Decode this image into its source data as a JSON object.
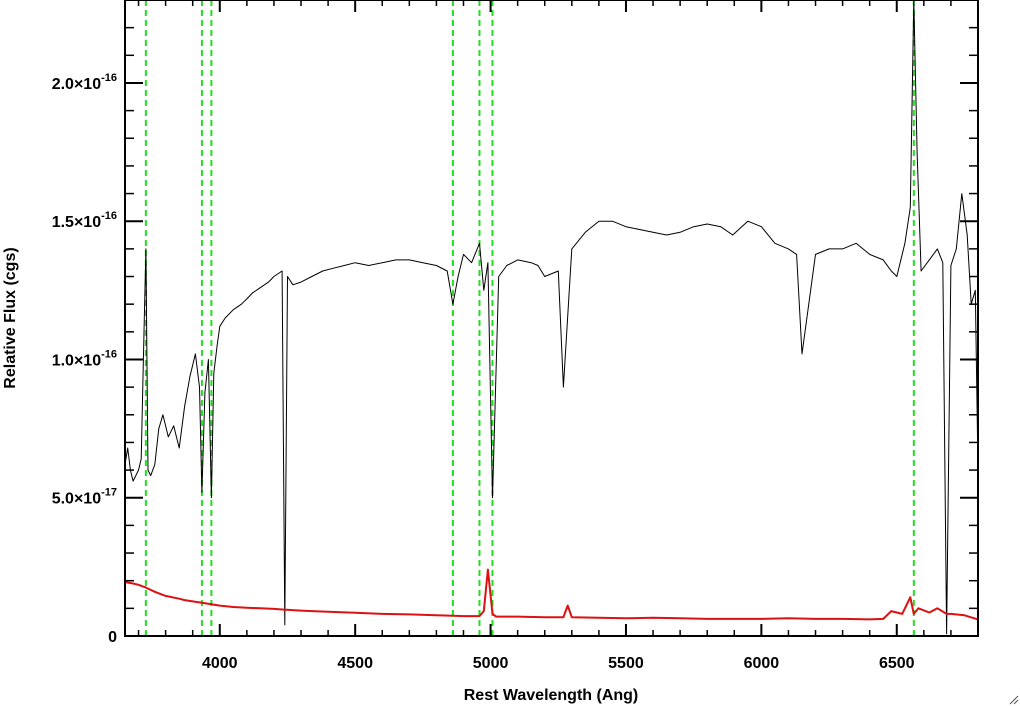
{
  "chart_data": {
    "type": "line",
    "title": "",
    "xlabel": "Rest Wavelength (Ang)",
    "ylabel": "Relative Flux (cgs)",
    "xlim": [
      3650,
      6800
    ],
    "ylim": [
      0,
      2.3e-16
    ],
    "x_ticks": [
      {
        "value": 4000,
        "label": "4000"
      },
      {
        "value": 4500,
        "label": "4500"
      },
      {
        "value": 5000,
        "label": "5000"
      },
      {
        "value": 5500,
        "label": "5500"
      },
      {
        "value": 6000,
        "label": "6000"
      },
      {
        "value": 6500,
        "label": "6500"
      }
    ],
    "y_ticks": [
      {
        "value": 0,
        "mantissa": "0",
        "exponent": ""
      },
      {
        "value": 5e-17,
        "mantissa": "5.0×10",
        "exponent": "-17"
      },
      {
        "value": 1e-16,
        "mantissa": "1.0×10",
        "exponent": "-16"
      },
      {
        "value": 1.5e-16,
        "mantissa": "1.5×10",
        "exponent": "-16"
      },
      {
        "value": 2e-16,
        "mantissa": "2.0×10",
        "exponent": "-16"
      }
    ],
    "grid": false,
    "reference_lines": [
      3727,
      3934,
      3969,
      4861,
      4959,
      5007,
      6563
    ],
    "reference_line_color": "#22dd22",
    "series": [
      {
        "color": "#000000",
        "x": [
          3650,
          3660,
          3670,
          3680,
          3690,
          3700,
          3710,
          3720,
          3727,
          3735,
          3745,
          3760,
          3775,
          3790,
          3810,
          3830,
          3850,
          3870,
          3890,
          3910,
          3925,
          3934,
          3945,
          3958,
          3969,
          3978,
          3990,
          4000,
          4020,
          4050,
          4080,
          4101,
          4120,
          4150,
          4180,
          4200,
          4230,
          4240,
          4250,
          4270,
          4300,
          4340,
          4380,
          4420,
          4460,
          4500,
          4550,
          4600,
          4650,
          4700,
          4750,
          4800,
          4840,
          4861,
          4880,
          4900,
          4930,
          4959,
          4975,
          4990,
          5007,
          5030,
          5060,
          5100,
          5150,
          5175,
          5200,
          5250,
          5269,
          5300,
          5350,
          5400,
          5450,
          5500,
          5550,
          5600,
          5650,
          5700,
          5750,
          5800,
          5850,
          5894,
          5950,
          6000,
          6050,
          6100,
          6130,
          6150,
          6200,
          6250,
          6300,
          6350,
          6400,
          6450,
          6480,
          6500,
          6530,
          6550,
          6563,
          6575,
          6590,
          6620,
          6650,
          6670,
          6684,
          6700,
          6720,
          6740,
          6760,
          6775,
          6790,
          6800
        ],
        "y": [
          6.2e-17,
          6.8e-17,
          6e-17,
          5.6e-17,
          5.8e-17,
          6e-17,
          6.4e-17,
          1.1e-16,
          1.4e-16,
          6e-17,
          5.8e-17,
          6.2e-17,
          7.5e-17,
          8e-17,
          7.2e-17,
          7.6e-17,
          6.8e-17,
          8.3e-17,
          9.4e-17,
          1.02e-16,
          9e-17,
          5.2e-17,
          8.8e-17,
          1e-16,
          5e-17,
          9.5e-17,
          1.05e-16,
          1.12e-16,
          1.15e-16,
          1.18e-16,
          1.2e-16,
          1.22e-16,
          1.24e-16,
          1.26e-16,
          1.28e-16,
          1.3e-16,
          1.32e-16,
          4e-18,
          1.3e-16,
          1.27e-16,
          1.28e-16,
          1.3e-16,
          1.32e-16,
          1.33e-16,
          1.34e-16,
          1.35e-16,
          1.34e-16,
          1.35e-16,
          1.36e-16,
          1.36e-16,
          1.35e-16,
          1.34e-16,
          1.32e-16,
          1.2e-16,
          1.3e-16,
          1.38e-16,
          1.35e-16,
          1.42e-16,
          1.25e-16,
          1.35e-16,
          5e-17,
          1.3e-16,
          1.34e-16,
          1.36e-16,
          1.35e-16,
          1.34e-16,
          1.3e-16,
          1.32e-16,
          9e-17,
          1.4e-16,
          1.46e-16,
          1.5e-16,
          1.5e-16,
          1.48e-16,
          1.47e-16,
          1.46e-16,
          1.45e-16,
          1.46e-16,
          1.48e-16,
          1.49e-16,
          1.48e-16,
          1.45e-16,
          1.5e-16,
          1.48e-16,
          1.42e-16,
          1.4e-16,
          1.38e-16,
          1.02e-16,
          1.38e-16,
          1.4e-16,
          1.4e-16,
          1.42e-16,
          1.38e-16,
          1.36e-16,
          1.32e-16,
          1.3e-16,
          1.42e-16,
          1.55e-16,
          2.3e-16,
          1.75e-16,
          1.32e-16,
          1.36e-16,
          1.4e-16,
          1.35e-16,
          8e-19,
          1.34e-16,
          1.4e-16,
          1.6e-16,
          1.45e-16,
          1.2e-16,
          1.25e-16,
          6e-17
        ]
      },
      {
        "color": "#dd1111",
        "x": [
          3650,
          3680,
          3700,
          3727,
          3760,
          3800,
          3850,
          3870,
          3900,
          3934,
          3969,
          4000,
          4050,
          4100,
          4150,
          4200,
          4230,
          4300,
          4340,
          4400,
          4450,
          4500,
          4600,
          4700,
          4800,
          4861,
          4900,
          4959,
          4975,
          4990,
          5007,
          5020,
          5100,
          5200,
          5269,
          5285,
          5300,
          5400,
          5500,
          5600,
          5700,
          5800,
          5900,
          6000,
          6100,
          6200,
          6300,
          6400,
          6450,
          6480,
          6520,
          6550,
          6563,
          6580,
          6620,
          6650,
          6684,
          6700,
          6750,
          6800
        ],
        "y": [
          1.95e-17,
          1.9e-17,
          1.85e-17,
          1.75e-17,
          1.6e-17,
          1.45e-17,
          1.35e-17,
          1.3e-17,
          1.25e-17,
          1.2e-17,
          1.15e-17,
          1.1e-17,
          1.05e-17,
          1.02e-17,
          1e-17,
          9.8e-18,
          9.6e-18,
          9.2e-18,
          9e-18,
          8.8e-18,
          8.6e-18,
          8.4e-18,
          8e-18,
          7.8e-18,
          7.5e-18,
          7.3e-18,
          7.2e-18,
          7.2e-18,
          9e-18,
          2.4e-17,
          8e-18,
          7e-18,
          7e-18,
          6.8e-18,
          6.8e-18,
          1.1e-17,
          6.8e-18,
          6.6e-18,
          6.4e-18,
          6.6e-18,
          6.4e-18,
          6.2e-18,
          6.2e-18,
          6.2e-18,
          6.4e-18,
          6.2e-18,
          6.2e-18,
          6e-18,
          6.2e-18,
          9e-18,
          8e-18,
          1.4e-17,
          8e-18,
          1e-17,
          8.5e-18,
          1e-17,
          8e-18,
          8e-18,
          7.5e-18,
          6e-18
        ]
      }
    ]
  }
}
